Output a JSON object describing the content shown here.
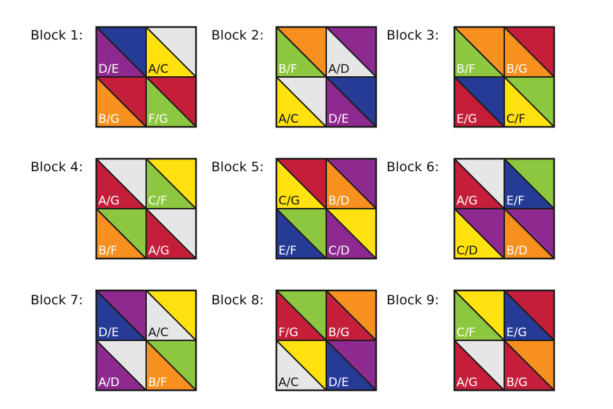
{
  "colors": {
    "A": "#E6E6E6",
    "B": "#F7901E",
    "C": "#FFE20F",
    "D": "#8E2A8F",
    "E": "#263B96",
    "F": "#8DC63F",
    "G": "#C41E3A"
  },
  "label_text_colors": {
    "A": "#111111",
    "B": "#FFFFFF",
    "C": "#111111",
    "D": "#FFFFFF",
    "E": "#FFFFFF",
    "F": "#FFFFFF",
    "G": "#FFFFFF"
  },
  "blocks": [
    {
      "title": "Block 1:",
      "cells": [
        {
          "label": "D/E",
          "top": "E",
          "bottom": "D"
        },
        {
          "label": "A/C",
          "top": "A",
          "bottom": "C"
        },
        {
          "label": "B/G",
          "top": "G",
          "bottom": "B"
        },
        {
          "label": "F/G",
          "top": "G",
          "bottom": "F"
        }
      ]
    },
    {
      "title": "Block 2:",
      "cells": [
        {
          "label": "B/F",
          "top": "B",
          "bottom": "F"
        },
        {
          "label": "A/D",
          "top": "D",
          "bottom": "A"
        },
        {
          "label": "A/C",
          "top": "A",
          "bottom": "C"
        },
        {
          "label": "D/E",
          "top": "E",
          "bottom": "D"
        }
      ]
    },
    {
      "title": "Block 3:",
      "cells": [
        {
          "label": "B/F",
          "top": "B",
          "bottom": "F"
        },
        {
          "label": "B/G",
          "top": "G",
          "bottom": "B"
        },
        {
          "label": "E/G",
          "top": "E",
          "bottom": "G"
        },
        {
          "label": "C/F",
          "top": "F",
          "bottom": "C"
        }
      ]
    },
    {
      "title": "Block 4:",
      "cells": [
        {
          "label": "A/G",
          "top": "A",
          "bottom": "G"
        },
        {
          "label": "C/F",
          "top": "C",
          "bottom": "F"
        },
        {
          "label": "B/F",
          "top": "F",
          "bottom": "B"
        },
        {
          "label": "A/G",
          "top": "A",
          "bottom": "G"
        }
      ]
    },
    {
      "title": "Block 5:",
      "cells": [
        {
          "label": "C/G",
          "top": "G",
          "bottom": "C"
        },
        {
          "label": "B/D",
          "top": "D",
          "bottom": "B"
        },
        {
          "label": "E/F",
          "top": "F",
          "bottom": "E"
        },
        {
          "label": "C/D",
          "top": "C",
          "bottom": "D"
        }
      ]
    },
    {
      "title": "Block 6:",
      "cells": [
        {
          "label": "A/G",
          "top": "A",
          "bottom": "G"
        },
        {
          "label": "E/F",
          "top": "F",
          "bottom": "E"
        },
        {
          "label": "C/D",
          "top": "D",
          "bottom": "C"
        },
        {
          "label": "B/D",
          "top": "D",
          "bottom": "B"
        }
      ]
    },
    {
      "title": "Block 7:",
      "cells": [
        {
          "label": "D/E",
          "top": "D",
          "bottom": "E"
        },
        {
          "label": "A/C",
          "top": "C",
          "bottom": "A"
        },
        {
          "label": "A/D",
          "top": "A",
          "bottom": "D"
        },
        {
          "label": "B/F",
          "top": "F",
          "bottom": "B"
        }
      ]
    },
    {
      "title": "Block 8:",
      "cells": [
        {
          "label": "F/G",
          "top": "F",
          "bottom": "G"
        },
        {
          "label": "B/G",
          "top": "B",
          "bottom": "G"
        },
        {
          "label": "A/C",
          "top": "C",
          "bottom": "A"
        },
        {
          "label": "D/E",
          "top": "D",
          "bottom": "E"
        }
      ]
    },
    {
      "title": "Block 9:",
      "cells": [
        {
          "label": "C/F",
          "top": "C",
          "bottom": "F"
        },
        {
          "label": "E/G",
          "top": "G",
          "bottom": "E"
        },
        {
          "label": "A/G",
          "top": "A",
          "bottom": "G"
        },
        {
          "label": "B/G",
          "top": "B",
          "bottom": "G"
        }
      ]
    }
  ]
}
